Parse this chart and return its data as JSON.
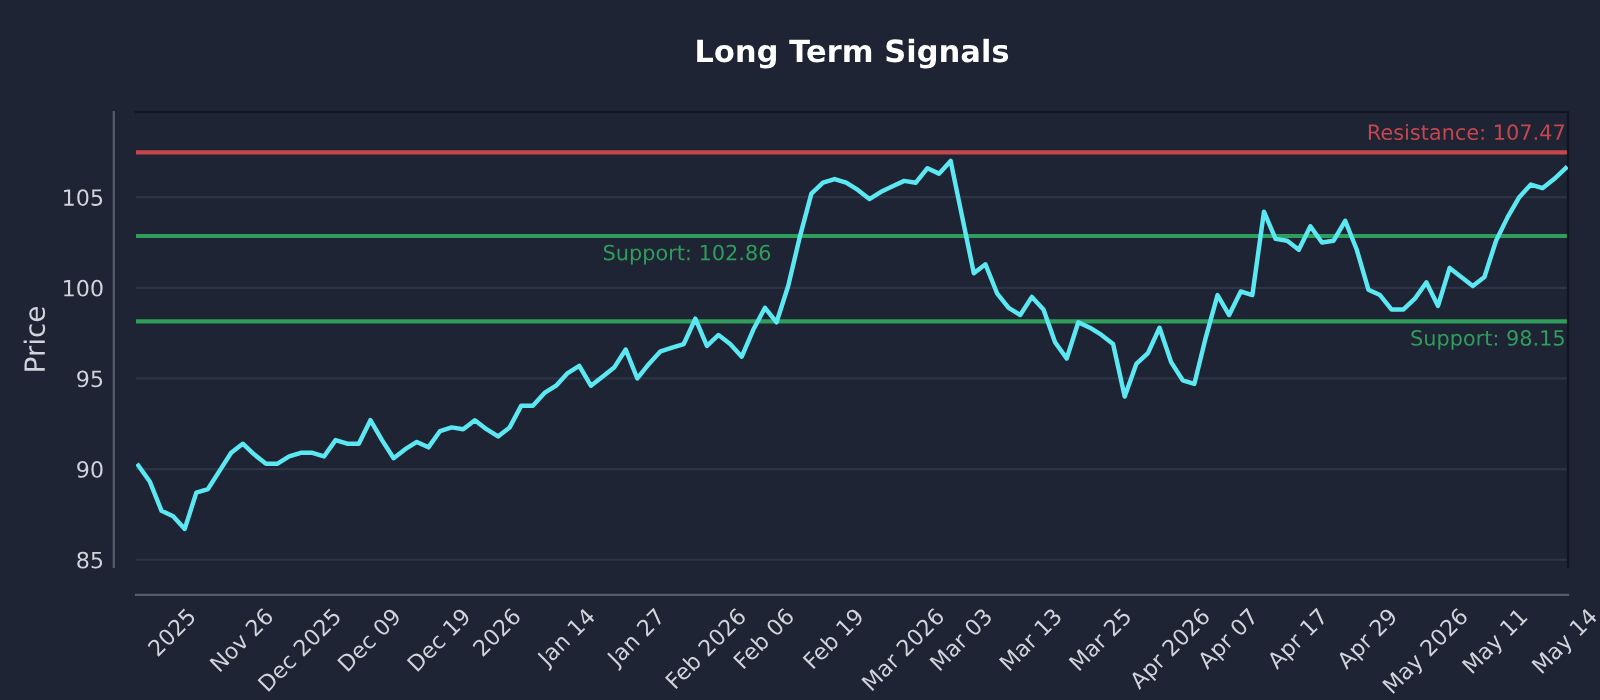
{
  "chart_data": {
    "type": "line",
    "title": "Long Term Signals",
    "ylabel": "Price",
    "categories": [
      null,
      null,
      null,
      "2025",
      null,
      null,
      null,
      null,
      null,
      "Nov 26",
      null,
      null,
      null,
      null,
      "Dec 2025",
      null,
      null,
      null,
      null,
      null,
      "Dec 09",
      null,
      null,
      null,
      null,
      null,
      "Dec 19",
      null,
      null,
      null,
      null,
      "2026",
      null,
      null,
      null,
      null,
      null,
      "Jan 14",
      null,
      null,
      null,
      null,
      null,
      "Jan 27",
      null,
      null,
      null,
      null,
      null,
      "Feb 2026",
      null,
      null,
      null,
      null,
      "Feb 06",
      null,
      null,
      null,
      null,
      null,
      "Feb 19",
      null,
      null,
      null,
      null,
      null,
      "Mar 2026",
      null,
      null,
      null,
      null,
      "Mar 03",
      null,
      null,
      null,
      null,
      null,
      "Mar 13",
      null,
      null,
      null,
      null,
      null,
      "Mar 25",
      null,
      null,
      null,
      null,
      null,
      "Apr 2026",
      null,
      null,
      null,
      null,
      "Apr 07",
      null,
      null,
      null,
      null,
      null,
      "Apr 17",
      null,
      null,
      null,
      null,
      null,
      "Apr 29",
      null,
      null,
      null,
      null,
      "May 2026",
      null,
      null,
      null,
      null,
      null,
      "May 11",
      null,
      null,
      null,
      null,
      null,
      "May 14"
    ],
    "series": [
      {
        "color": "#5ce8f2",
        "values": [
          90.2,
          89.3,
          87.7,
          87.4,
          86.7,
          88.7,
          88.9,
          89.9,
          90.9,
          91.4,
          90.8,
          90.3,
          90.3,
          90.7,
          90.9,
          90.9,
          90.7,
          91.6,
          91.4,
          91.4,
          92.7,
          91.6,
          90.6,
          91.1,
          91.5,
          91.2,
          92.1,
          92.3,
          92.2,
          92.7,
          92.2,
          91.8,
          92.3,
          93.5,
          93.5,
          94.2,
          94.6,
          95.3,
          95.7,
          94.6,
          95.1,
          95.6,
          96.6,
          95.0,
          95.8,
          96.5,
          96.7,
          96.9,
          98.3,
          96.8,
          97.4,
          96.9,
          96.2,
          97.7,
          98.9,
          98.1,
          100.1,
          102.8,
          105.2,
          105.8,
          106.0,
          105.8,
          105.4,
          104.9,
          105.3,
          105.6,
          105.9,
          105.8,
          106.6,
          106.3,
          107.0,
          103.9,
          100.8,
          101.3,
          99.7,
          98.9,
          98.5,
          99.5,
          98.8,
          97.0,
          96.1,
          98.1,
          97.8,
          97.4,
          96.9,
          94.0,
          95.8,
          96.4,
          97.8,
          95.9,
          94.9,
          94.7,
          97.3,
          99.6,
          98.5,
          99.8,
          99.6,
          104.2,
          102.7,
          102.6,
          102.1,
          103.4,
          102.5,
          102.6,
          103.7,
          102.1,
          99.9,
          99.6,
          98.8,
          98.8,
          99.4,
          100.3,
          99.0,
          101.1,
          100.6,
          100.1,
          100.6,
          102.6,
          103.9,
          105.0,
          105.7,
          105.5,
          106.0,
          106.6
        ]
      }
    ],
    "ylim": [
      84.6,
      109.7
    ],
    "yticks": [
      85,
      90,
      95,
      100,
      105
    ],
    "grid": "y",
    "marker": "none",
    "line_style": "solid",
    "ref_lines": [
      {
        "axis": "y",
        "value": 107.47,
        "label": "Resistance: 107.47",
        "color": "#c4474f"
      },
      {
        "axis": "y",
        "value": 102.86,
        "label": "Support: 102.86",
        "color": "#2f9e5c"
      },
      {
        "axis": "y",
        "value": 98.15,
        "label": "Support: 98.15",
        "color": "#2f9e5c"
      }
    ]
  }
}
